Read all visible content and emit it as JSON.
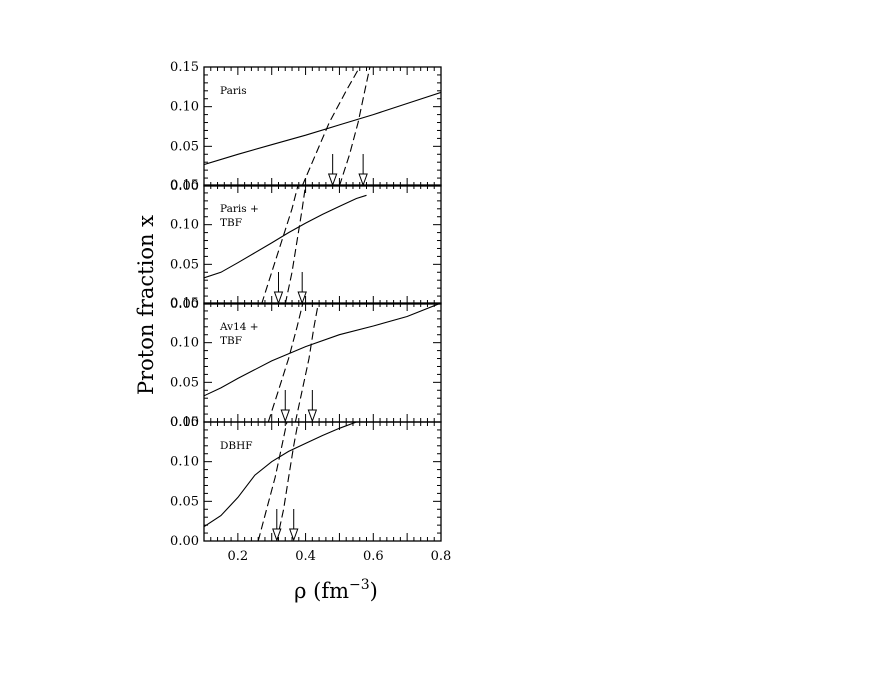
{
  "chart_data": {
    "type": "line",
    "xlabel": "ρ (fm",
    "xlabel_sup": "−3",
    "xlabel_close": ")",
    "ylabel": "Proton fraction x",
    "xlim": [
      0.1,
      0.8
    ],
    "ylim": [
      0.0,
      0.15
    ],
    "xticks": [
      0.2,
      0.4,
      0.6,
      0.8
    ],
    "xtick_labels": [
      "0.2",
      "0.4",
      "0.6",
      "0.8"
    ],
    "ytick_labels": [
      "0.00",
      "0.05",
      "0.10",
      "0.15"
    ],
    "panels": [
      {
        "label": [
          "Paris"
        ],
        "solid": [
          [
            0.1,
            0.027
          ],
          [
            0.2,
            0.04
          ],
          [
            0.3,
            0.052
          ],
          [
            0.4,
            0.064
          ],
          [
            0.5,
            0.077
          ],
          [
            0.6,
            0.09
          ],
          [
            0.7,
            0.104
          ],
          [
            0.8,
            0.118
          ]
        ],
        "dashed1": [
          [
            0.39,
            0.0
          ],
          [
            0.43,
            0.04
          ],
          [
            0.47,
            0.08
          ],
          [
            0.52,
            0.12
          ],
          [
            0.56,
            0.15
          ]
        ],
        "dashed2": [
          [
            0.5,
            0.0
          ],
          [
            0.53,
            0.04
          ],
          [
            0.555,
            0.08
          ],
          [
            0.575,
            0.12
          ],
          [
            0.59,
            0.15
          ]
        ],
        "arrows": [
          0.48,
          0.57
        ]
      },
      {
        "label": [
          "Paris +",
          "TBF"
        ],
        "solid": [
          [
            0.1,
            0.033
          ],
          [
            0.15,
            0.04
          ],
          [
            0.2,
            0.052
          ],
          [
            0.3,
            0.077
          ],
          [
            0.35,
            0.09
          ],
          [
            0.4,
            0.102
          ],
          [
            0.45,
            0.113
          ],
          [
            0.5,
            0.123
          ],
          [
            0.55,
            0.133
          ],
          [
            0.58,
            0.137
          ]
        ],
        "dashed1": [
          [
            0.27,
            0.0
          ],
          [
            0.3,
            0.04
          ],
          [
            0.33,
            0.08
          ],
          [
            0.36,
            0.12
          ],
          [
            0.378,
            0.15
          ]
        ],
        "dashed2": [
          [
            0.34,
            0.0
          ],
          [
            0.36,
            0.04
          ],
          [
            0.375,
            0.08
          ],
          [
            0.39,
            0.12
          ],
          [
            0.4,
            0.15
          ]
        ],
        "arrows": [
          0.32,
          0.39
        ]
      },
      {
        "label": [
          "Av14 +",
          "TBF"
        ],
        "solid": [
          [
            0.1,
            0.033
          ],
          [
            0.15,
            0.043
          ],
          [
            0.2,
            0.055
          ],
          [
            0.3,
            0.077
          ],
          [
            0.4,
            0.095
          ],
          [
            0.5,
            0.11
          ],
          [
            0.6,
            0.121
          ],
          [
            0.7,
            0.133
          ],
          [
            0.8,
            0.15
          ]
        ],
        "dashed1": [
          [
            0.29,
            0.0
          ],
          [
            0.32,
            0.04
          ],
          [
            0.35,
            0.08
          ],
          [
            0.375,
            0.12
          ],
          [
            0.392,
            0.15
          ]
        ],
        "dashed2": [
          [
            0.37,
            0.0
          ],
          [
            0.39,
            0.04
          ],
          [
            0.41,
            0.08
          ],
          [
            0.425,
            0.12
          ],
          [
            0.438,
            0.15
          ]
        ],
        "arrows": [
          0.34,
          0.42
        ]
      },
      {
        "label": [
          "DBHF"
        ],
        "solid": [
          [
            0.1,
            0.018
          ],
          [
            0.15,
            0.032
          ],
          [
            0.2,
            0.055
          ],
          [
            0.25,
            0.083
          ],
          [
            0.3,
            0.1
          ],
          [
            0.35,
            0.113
          ],
          [
            0.4,
            0.123
          ],
          [
            0.45,
            0.133
          ],
          [
            0.5,
            0.142
          ],
          [
            0.55,
            0.15
          ]
        ],
        "dashed1": [
          [
            0.26,
            0.0
          ],
          [
            0.285,
            0.04
          ],
          [
            0.31,
            0.08
          ],
          [
            0.33,
            0.12
          ],
          [
            0.345,
            0.15
          ]
        ],
        "dashed2": [
          [
            0.315,
            0.0
          ],
          [
            0.335,
            0.04
          ],
          [
            0.35,
            0.08
          ],
          [
            0.365,
            0.12
          ],
          [
            0.378,
            0.15
          ]
        ],
        "arrows": [
          0.315,
          0.365
        ]
      }
    ]
  }
}
